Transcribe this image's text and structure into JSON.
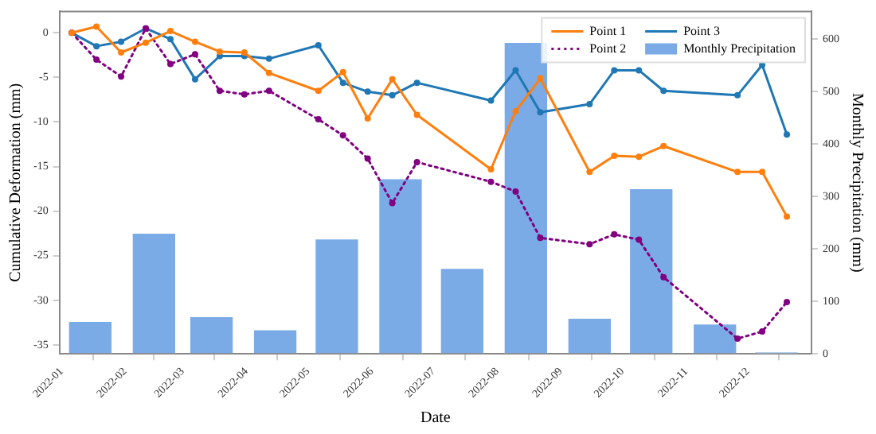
{
  "chart_data": {
    "type": "line",
    "xlabel": "Date",
    "ylabel": "Cumulative Deformation (mm)",
    "y2label": "Monthly Precipitation (mm)",
    "x": [
      "2022-01-06",
      "2022-01-18",
      "2022-01-30",
      "2022-02-11",
      "2022-02-23",
      "2022-03-07",
      "2022-03-19",
      "2022-03-31",
      "2022-04-12",
      "2022-05-06",
      "2022-05-18",
      "2022-05-30",
      "2022-06-11",
      "2022-06-23",
      "2022-07-29",
      "2022-08-10",
      "2022-08-22",
      "2022-09-15",
      "2022-09-27",
      "2022-10-09",
      "2022-10-21",
      "2022-11-26",
      "2022-12-08",
      "2022-12-20"
    ],
    "xlim": [
      "2021-12-31",
      "2023-01-01"
    ],
    "xticks": [
      "2022-01",
      "2022-02",
      "2022-03",
      "2022-04",
      "2022-05",
      "2022-06",
      "2022-07",
      "2022-08",
      "2022-09",
      "2022-10",
      "2022-11",
      "2022-12"
    ],
    "ylim": [
      -36,
      2.4
    ],
    "yticks": [
      0,
      -5,
      -10,
      -15,
      -20,
      -25,
      -30,
      -35
    ],
    "y2lim": [
      0,
      653
    ],
    "y2ticks": [
      0,
      100,
      200,
      300,
      400,
      500,
      600
    ],
    "grid": false,
    "legend": "top right",
    "marker": "circle",
    "series": [
      {
        "name": "Point 1",
        "color": "#ff7f0e",
        "line_style": "solid",
        "values": [
          0,
          0.7,
          -2.2,
          -1.1,
          0.2,
          -1.0,
          -2.1,
          -2.2,
          -4.5,
          -6.5,
          -4.4,
          -9.6,
          -5.2,
          -9.2,
          -15.3,
          -8.8,
          -5.1,
          -15.6,
          -13.8,
          -13.9,
          -12.7,
          -15.6,
          -15.6,
          -20.6
        ]
      },
      {
        "name": "Point 2",
        "color": "#800080",
        "line_style": "dotted",
        "values": [
          0,
          -3.0,
          -4.9,
          0.5,
          -3.5,
          -2.4,
          -6.5,
          -6.9,
          -6.5,
          -9.7,
          -11.5,
          -14.1,
          -19.1,
          -14.5,
          -16.7,
          -17.8,
          -23.0,
          -23.7,
          -22.6,
          -23.2,
          -27.4,
          -34.3,
          -33.5,
          -30.2
        ]
      },
      {
        "name": "Point 3",
        "color": "#1f77b4",
        "line_style": "solid",
        "values": [
          0,
          -1.5,
          -1.0,
          0.5,
          -0.7,
          -5.2,
          -2.6,
          -2.6,
          -2.9,
          -1.4,
          -5.6,
          -6.6,
          -7.0,
          -5.6,
          -7.6,
          -4.2,
          -8.9,
          -8.0,
          -4.2,
          -4.2,
          -6.5,
          -7.0,
          -3.6,
          -11.4
        ]
      },
      {
        "name": "Monthly Precipitation",
        "type": "bar",
        "axis": "y2",
        "color": "#7aabe6",
        "x": [
          "2022-01-15",
          "2022-02-15",
          "2022-03-15",
          "2022-04-15",
          "2022-05-15",
          "2022-06-15",
          "2022-07-15",
          "2022-08-15",
          "2022-09-15",
          "2022-10-15",
          "2022-11-15",
          "2022-12-15"
        ],
        "values": [
          63,
          231,
          72,
          47,
          220,
          335,
          164,
          595,
          69,
          316,
          58,
          2
        ]
      }
    ]
  }
}
